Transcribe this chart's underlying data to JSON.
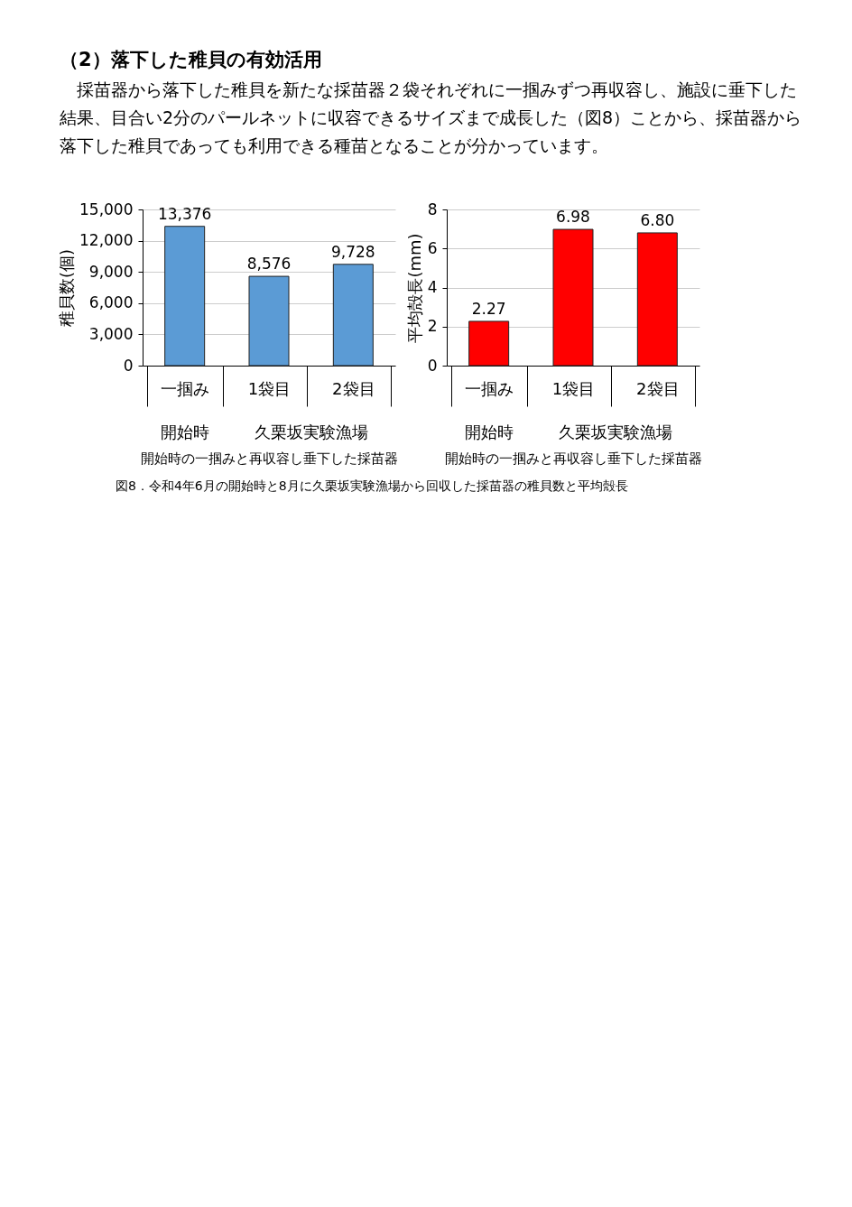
{
  "chart_data": [
    {
      "type": "bar",
      "title": "（2）落下した稚貝の有効活用",
      "subtitle": "　採苗器から落下した稚貝を新たな採苗器２袋それぞれに一掴みずつ再収容し、施設に垂下した結果、目合い2分のパールネットに収容できるサイズまで成長した（図8）ことから、採苗器から落下した稚貝であっても利用できる種苗となることが分かっています。",
      "categories": [
        "一掴み",
        "1袋目",
        "2袋目"
      ],
      "values": [
        13376,
        8576,
        9728
      ],
      "value_labels": [
        "13,376",
        "8,576",
        "9,728"
      ],
      "color": "#5b9bd5",
      "ylabel": "稚貝数(個)",
      "ylim": [
        0,
        15000
      ],
      "yticks": [
        0,
        {
          "value": 3000,
          "label": "3,000"
        },
        {
          "value": 6000,
          "label": "6,000"
        },
        {
          "value": 9000,
          "label": "9,000"
        },
        {
          "value": 12000,
          "label": "12,000"
        },
        {
          "value": 15000,
          "label": "15,000"
        }
      ],
      "grid": "y",
      "annotations": [
        "開始時",
        "久栗坂実験漁場",
        "開始時の一掴みと再収容し垂下した採苗器"
      ]
    },
    {
      "type": "bar",
      "categories": [
        "一掴み",
        "1袋目",
        "2袋目"
      ],
      "values": [
        2.27,
        6.98,
        6.8
      ],
      "value_labels": [
        "2.27",
        "6.98",
        "6.80"
      ],
      "color": "#ff0000",
      "ylabel": "平均殻長(mm)",
      "ylim": [
        0,
        8
      ],
      "yticks": [
        0,
        2,
        4,
        6,
        8
      ],
      "grid": "y",
      "annotations": [
        "開始時",
        "久栗坂実験漁場",
        "開始時の一掴みと再収容し垂下した採苗器",
        "図8．令和4年6月の開始時と8月に久栗坂実験漁場から回収した採苗器の稚貝数と平均殻長"
      ]
    }
  ]
}
